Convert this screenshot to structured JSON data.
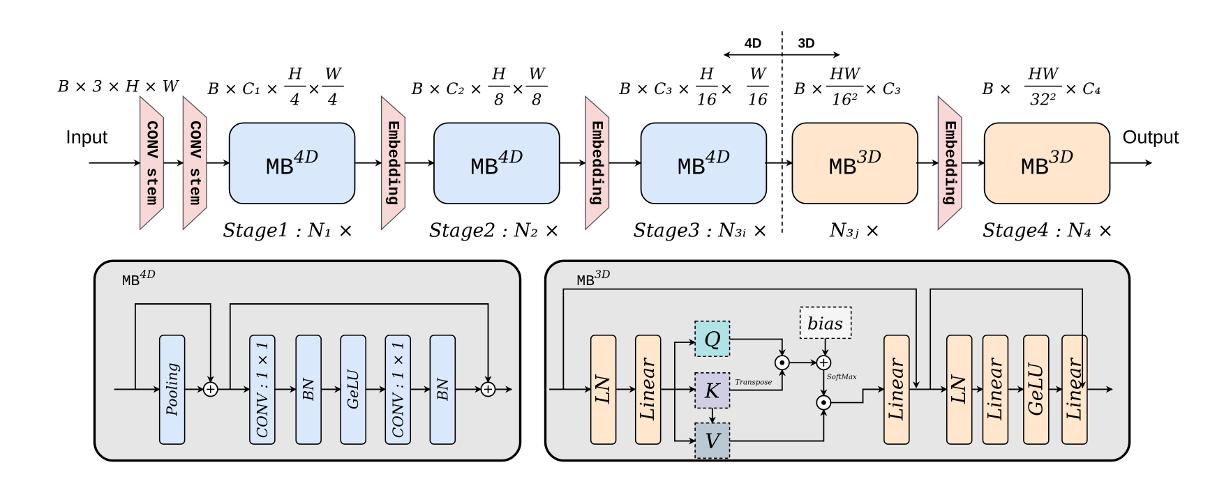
{
  "top": {
    "input_label": "Input",
    "output_label": "Output",
    "split": {
      "left": "4D",
      "right": "3D"
    },
    "transitions": [
      "CONV stem",
      "CONV stem",
      "Embedding",
      "Embedding",
      "Embedding"
    ],
    "blocks": [
      {
        "name": "MB",
        "sup": "4D",
        "color": "#dae8fc"
      },
      {
        "name": "MB",
        "sup": "4D",
        "color": "#dae8fc"
      },
      {
        "name": "MB",
        "sup": "4D",
        "color": "#dae8fc"
      },
      {
        "name": "MB",
        "sup": "3D",
        "color": "#ffe6cc"
      },
      {
        "name": "MB",
        "sup": "3D",
        "color": "#ffe6cc"
      }
    ],
    "stages": [
      "Stage1 : N₁ ×",
      "Stage2 : N₂ ×",
      "Stage3 : N₃ᵢ ×",
      "N₃ⱼ ×",
      "Stage4 : N₄ ×"
    ],
    "shapes": [
      {
        "text": "B × 3 × H × W"
      },
      {
        "pre": "B × C₁ ×",
        "n1": "H",
        "d1": "4",
        "mid": "×",
        "n2": "W",
        "d2": "4"
      },
      {
        "pre": "B × C₂ ×",
        "n1": "H",
        "d1": "8",
        "mid": "×",
        "n2": "W",
        "d2": "8"
      },
      {
        "pre": "B × C₃ ×",
        "n1": "H",
        "d1": "16",
        "mid": "×",
        "n2": "W",
        "d2": "16"
      },
      {
        "pre": "B ×",
        "n1": "HW",
        "d1": "16²",
        "post": "× C₃"
      },
      {
        "pre": "B ×",
        "n1": "HW",
        "d1": "32²",
        "post": "× C₄"
      }
    ]
  },
  "mb4d": {
    "title": "MB",
    "sup": "4D",
    "blocks": [
      "Pooling",
      "CONV : 1 × 1",
      "BN",
      "GeLU",
      "CONV : 1 × 1",
      "BN"
    ]
  },
  "mb3d": {
    "title": "MB",
    "sup": "3D",
    "blocks": [
      "LN",
      "Linear",
      "Linear",
      "LN",
      "Linear",
      "GeLU",
      "Linear"
    ],
    "q": "Q",
    "k": "K",
    "v": "V",
    "bias": "bias",
    "transpose": "Transpose",
    "softmax": "SoftMax"
  },
  "colors": {
    "mb4d_fill": "#dae8fc",
    "mb3d_fill": "#ffe6cc",
    "stem_fill": "#f8d7d7",
    "panel_fill": "#e6e6e6",
    "q_fill": "#b0e3e6",
    "k_fill": "#d0cee2",
    "v_fill": "#bac8d3",
    "bias_fill": "#f5f5f5"
  }
}
